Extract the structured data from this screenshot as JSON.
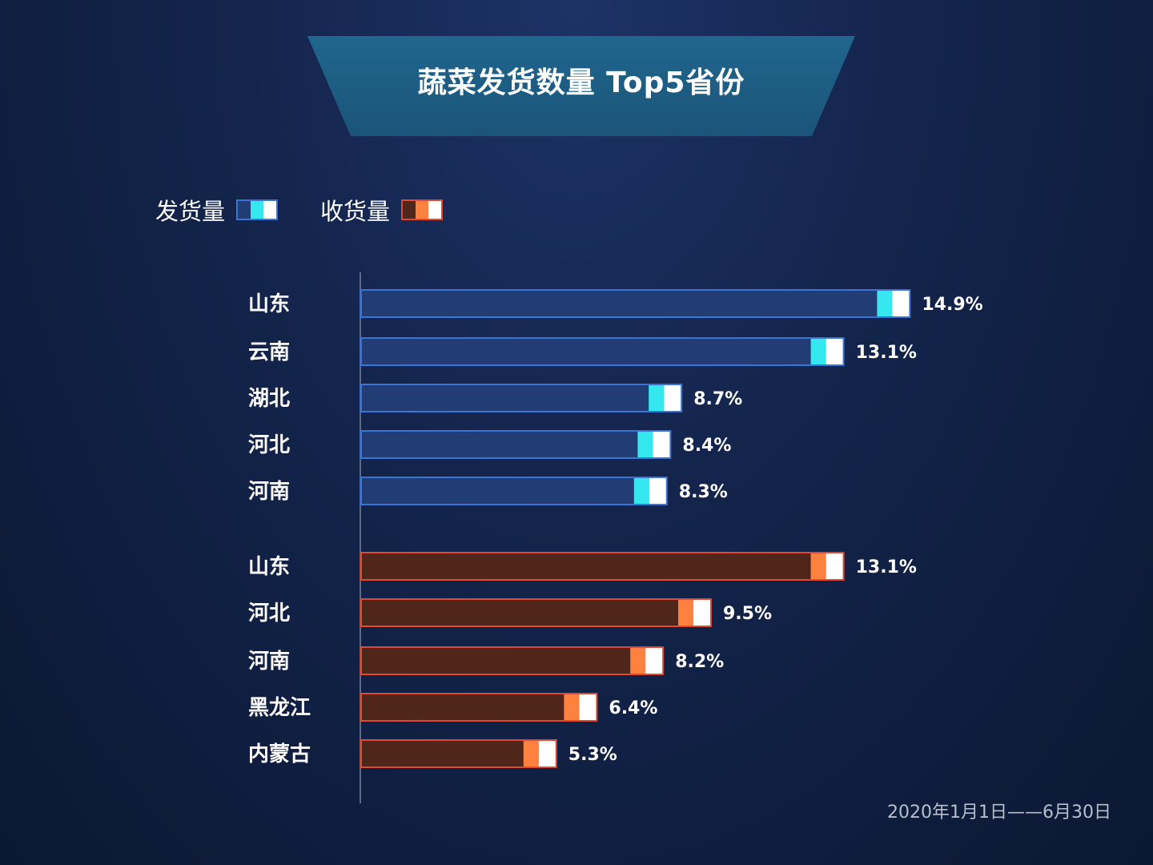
{
  "title": "蔬菜发货数量 Top5省份",
  "legend": {
    "shipping": {
      "label": "发货量",
      "colors": [
        "#213d74",
        "#35e8f0",
        "#ffffff"
      ],
      "border": "#3a74d6"
    },
    "receiving": {
      "label": "收货量",
      "colors": [
        "#50261a",
        "#ff8140",
        "#ffffff"
      ],
      "border": "#e04a30"
    }
  },
  "date_range": "2020年1月1日——6月30日",
  "chart_data": [
    {
      "type": "bar",
      "orientation": "horizontal",
      "name": "发货量",
      "categories": [
        "山东",
        "云南",
        "湖北",
        "河北",
        "河南"
      ],
      "values": [
        14.9,
        13.1,
        8.7,
        8.4,
        8.3
      ],
      "value_labels": [
        "14.9%",
        "13.1%",
        "8.7%",
        "8.4%",
        "8.3%"
      ],
      "unit": "%"
    },
    {
      "type": "bar",
      "orientation": "horizontal",
      "name": "收货量",
      "categories": [
        "山东",
        "河北",
        "河南",
        "黑龙江",
        "内蒙古"
      ],
      "values": [
        13.1,
        9.5,
        8.2,
        6.4,
        5.3
      ],
      "value_labels": [
        "13.1%",
        "9.5%",
        "8.2%",
        "6.4%",
        "5.3%"
      ],
      "unit": "%"
    }
  ]
}
